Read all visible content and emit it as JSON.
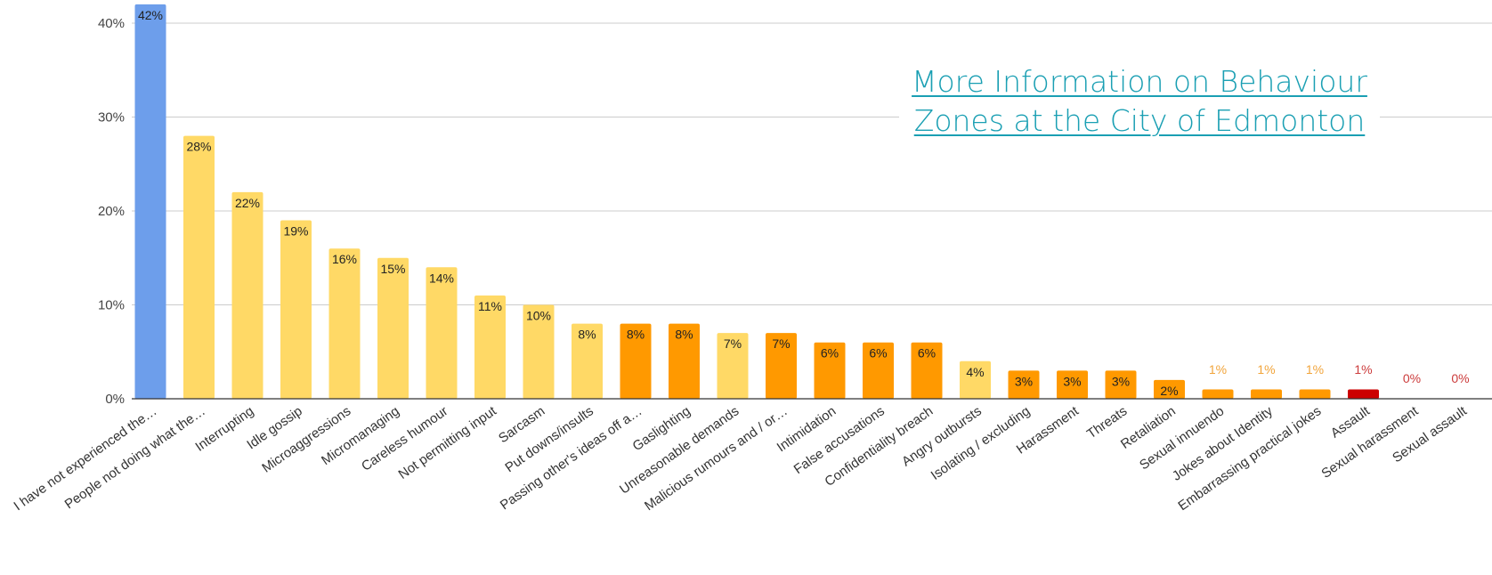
{
  "link": {
    "text": "More Information on Behaviour Zones at the City of Edmonton",
    "color": "#1a9fb3"
  },
  "chart_data": {
    "type": "bar",
    "title": "",
    "xlabel": "",
    "ylabel": "",
    "ylim": [
      0,
      42
    ],
    "yticks": [
      "0%",
      "10%",
      "20%",
      "30%",
      "40%"
    ],
    "grid": true,
    "categories": [
      "I have not experienced the…",
      "People not doing what the…",
      "Interrupting",
      "Idle gossip",
      "Microaggressions",
      "Micromanaging",
      "Careless humour",
      "Not permitting input",
      "Sarcasm",
      "Put downs/insults",
      "Passing other's ideas off a…",
      "Gaslighting",
      "Unreasonable demands",
      "Malicious rumours and / or…",
      "Intimidation",
      "False accusations",
      "Confidentiality breach",
      "Angry outbursts",
      "Isolating / excluding",
      "Harassment",
      "Threats",
      "Retaliation",
      "Sexual innuendo",
      "Jokes about Identity",
      "Embarrassing practical jokes",
      "Assault",
      "Sexual harassment",
      "Sexual assault"
    ],
    "values": [
      42,
      28,
      22,
      19,
      16,
      15,
      14,
      11,
      10,
      8,
      8,
      8,
      7,
      7,
      6,
      6,
      6,
      4,
      3,
      3,
      3,
      2,
      1,
      1,
      1,
      1,
      0,
      0
    ],
    "labels": [
      "42%",
      "28%",
      "22%",
      "19%",
      "16%",
      "15%",
      "14%",
      "11%",
      "10%",
      "8%",
      "8%",
      "8%",
      "7%",
      "7%",
      "6%",
      "6%",
      "6%",
      "4%",
      "3%",
      "3%",
      "3%",
      "2%",
      "1%",
      "1%",
      "1%",
      "1%",
      "0%",
      "0%"
    ],
    "bar_colors": [
      "#6d9eeb",
      "#ffd966",
      "#ffd966",
      "#ffd966",
      "#ffd966",
      "#ffd966",
      "#ffd966",
      "#ffd966",
      "#ffd966",
      "#ffd966",
      "#ff9900",
      "#ff9900",
      "#ffd966",
      "#ff9900",
      "#ff9900",
      "#ff9900",
      "#ff9900",
      "#ffd966",
      "#ff9900",
      "#ff9900",
      "#ff9900",
      "#ff9900",
      "#ff9900",
      "#ff9900",
      "#ff9900",
      "#cc0000",
      "#cc0000",
      "#cc0000"
    ],
    "colors": {
      "positive": "#6d9eeb",
      "moderate": "#ffd966",
      "elevated": "#ff9900",
      "severe": "#cc0000",
      "label_dark": "#222222",
      "label_orange": "#f1a43a",
      "label_red": "#cc3b3b",
      "grid": "#cccccc",
      "axis": "#333333"
    }
  }
}
